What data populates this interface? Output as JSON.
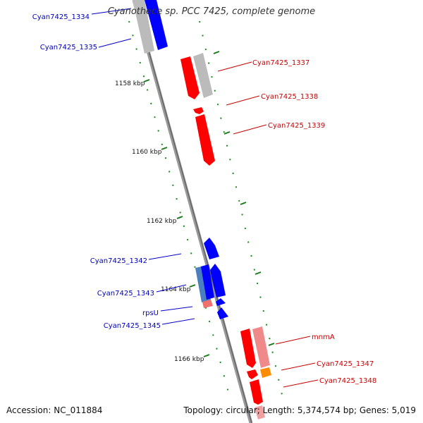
{
  "title": "Cyanothece sp. PCC 7425, complete genome",
  "footer": {
    "accession": "Accession: NC_011884",
    "topology": "Topology: circular; Length: 5,374,574 bp; Genes: 5,019"
  },
  "colors": {
    "forward_gene": "#ff0000",
    "forward_label": "#cc0000",
    "reverse_gene": "#0000ff",
    "reverse_label": "#0000bb",
    "pseudo": "#b3b3b3",
    "rna": "#ff8c00",
    "tick": "#1a7a1a",
    "backbone": "#888888"
  },
  "ticks": [
    {
      "label": "1158 kbp"
    },
    {
      "label": "1160 kbp"
    },
    {
      "label": "1162 kbp"
    },
    {
      "label": "1164 kbp"
    },
    {
      "label": "1166 kbp"
    }
  ],
  "genes": [
    {
      "id": "g1334",
      "label": "Cyan7425_1334",
      "strand": "reverse"
    },
    {
      "id": "g1335",
      "label": "Cyan7425_1335",
      "strand": "reverse"
    },
    {
      "id": "g1337",
      "label": "Cyan7425_1337",
      "strand": "forward"
    },
    {
      "id": "g1338",
      "label": "Cyan7425_1338",
      "strand": "forward"
    },
    {
      "id": "g1339",
      "label": "Cyan7425_1339",
      "strand": "forward"
    },
    {
      "id": "g1342",
      "label": "Cyan7425_1342",
      "strand": "reverse"
    },
    {
      "id": "g1343",
      "label": "Cyan7425_1343",
      "strand": "reverse"
    },
    {
      "id": "rpsU",
      "label": "rpsU",
      "strand": "reverse"
    },
    {
      "id": "g1345",
      "label": "Cyan7425_1345",
      "strand": "reverse"
    },
    {
      "id": "mnmA",
      "label": "mnmA",
      "strand": "forward"
    },
    {
      "id": "g1347",
      "label": "Cyan7425_1347",
      "strand": "forward"
    },
    {
      "id": "g1348",
      "label": "Cyan7425_1348",
      "strand": "forward"
    }
  ]
}
